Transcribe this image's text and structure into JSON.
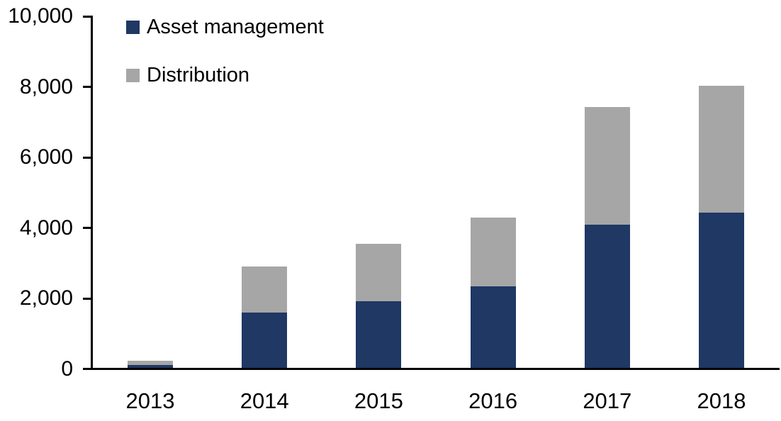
{
  "chart_data": {
    "type": "bar",
    "stacked": true,
    "title": "",
    "xlabel": "",
    "ylabel": "",
    "categories": [
      "2013",
      "2014",
      "2015",
      "2016",
      "2017",
      "2018"
    ],
    "series": [
      {
        "name": "Asset management",
        "color": "#1F3864",
        "values": [
          90,
          1570,
          1890,
          2310,
          4060,
          4410
        ]
      },
      {
        "name": "Distribution",
        "color": "#A6A6A6",
        "values": [
          110,
          1310,
          1630,
          1950,
          3340,
          3590
        ]
      }
    ],
    "ylim": [
      0,
      10000
    ],
    "yticks": [
      0,
      2000,
      4000,
      6000,
      8000,
      10000
    ],
    "ytick_labels": [
      "0",
      "2,000",
      "4,000",
      "6,000",
      "8,000",
      "10,000"
    ],
    "grid": false,
    "legend_position": "top-left"
  },
  "legend": {
    "items": [
      {
        "label": "Asset management",
        "color": "#1F3864"
      },
      {
        "label": "Distribution",
        "color": "#A6A6A6"
      }
    ]
  },
  "colors": {
    "axis": "#000000",
    "background": "#FFFFFF"
  }
}
